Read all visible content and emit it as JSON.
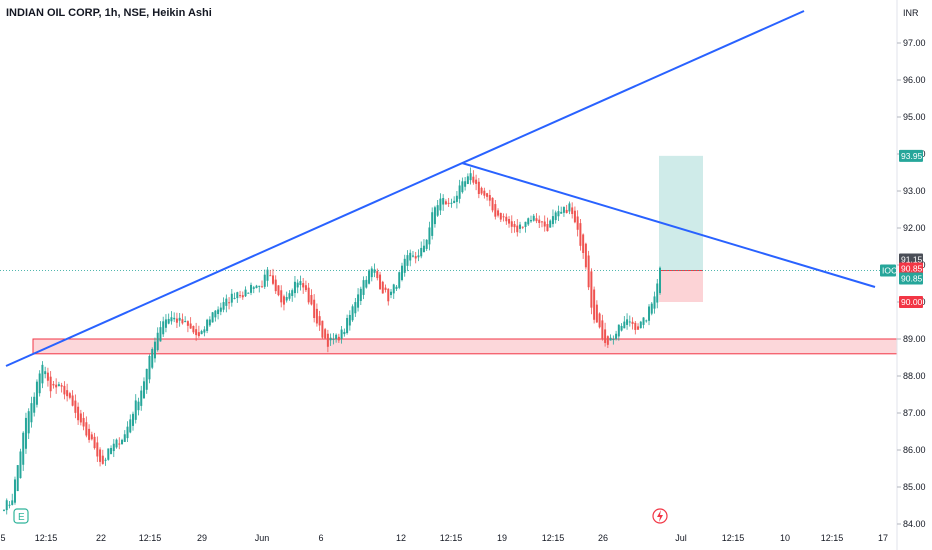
{
  "header": {
    "title": "INDIAN OIL CORP, 1h, NSE, Heikin Ashi"
  },
  "currency": "INR",
  "chart_data": {
    "type": "candlestick",
    "title": "INDIAN OIL CORP, 1h, NSE, Heikin Ashi",
    "ylim": [
      84.0,
      98.0
    ],
    "y_ticks": [
      84.0,
      85.0,
      86.0,
      87.0,
      88.0,
      89.0,
      90.0,
      91.0,
      92.0,
      93.0,
      94.0,
      95.0,
      96.0,
      97.0
    ],
    "x_ticks": [
      "5",
      "12:15",
      "22",
      "12:15",
      "29",
      "Jun",
      "6",
      "12",
      "12:15",
      "19",
      "12:15",
      "26",
      "Jul",
      "12:15",
      "10",
      "12:15",
      "17"
    ],
    "close_path": [
      84.5,
      84.6,
      85.8,
      86.9,
      87.4,
      88.4,
      87.7,
      87.7,
      87.6,
      87.2,
      86.7,
      86.4,
      86.1,
      85.6,
      86.0,
      86.2,
      86.4,
      87.0,
      87.5,
      88.2,
      89.0,
      89.5,
      89.6,
      89.5,
      89.4,
      89.2,
      89.0,
      89.5,
      89.8,
      89.9,
      90.1,
      90.3,
      90.2,
      90.5,
      90.4,
      90.8,
      90.2,
      90.0,
      90.4,
      90.6,
      90.3,
      89.7,
      89.2,
      88.9,
      89.0,
      89.2,
      89.7,
      90.3,
      90.7,
      90.9,
      90.4,
      90.1,
      90.5,
      91.0,
      91.3,
      91.2,
      91.7,
      92.5,
      92.8,
      92.6,
      92.9,
      93.2,
      93.4,
      93.0,
      92.8,
      92.4,
      92.3,
      92.1,
      91.9,
      92.2,
      92.3,
      92.2,
      92.0,
      92.3,
      92.4,
      92.6,
      91.9,
      91.3,
      89.8,
      89.2,
      88.9,
      89.1,
      89.4,
      89.5,
      89.3,
      89.5,
      90.0,
      90.9
    ],
    "series": [
      {
        "name": "IOC",
        "last": "90.85",
        "color": "#26a69a"
      }
    ],
    "price_tags": [
      {
        "label": "93.95",
        "value": 93.95,
        "color": "#26a69a"
      },
      {
        "label": "91.15",
        "value": 91.15,
        "color": "#4a4e57"
      },
      {
        "label": "90.85",
        "value": 90.85,
        "color": "#f23645"
      },
      {
        "label": "90.85",
        "value": 90.85,
        "color": "#26a69a"
      },
      {
        "label": "90.00",
        "value": 90.0,
        "color": "#f23645"
      }
    ],
    "drawings": {
      "support_zone": {
        "low": 88.6,
        "high": 89.0
      },
      "position": {
        "entry": 90.85,
        "target": 93.95,
        "stop": 90.0
      }
    }
  }
}
